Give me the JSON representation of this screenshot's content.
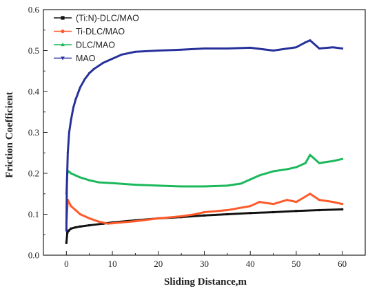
{
  "chart_data": {
    "type": "line",
    "title": "",
    "xlabel": "Sliding Distance,m",
    "ylabel": "Friction Coefficient",
    "xlim": [
      -5,
      65
    ],
    "ylim": [
      0.0,
      0.6
    ],
    "x_ticks": [
      0,
      10,
      20,
      30,
      40,
      50,
      60
    ],
    "y_ticks": [
      0.0,
      0.1,
      0.2,
      0.3,
      0.4,
      0.5,
      0.6
    ],
    "x_tick_labels": [
      "0",
      "10",
      "20",
      "30",
      "40",
      "50",
      "60"
    ],
    "y_tick_labels": [
      "0.0",
      "0.1",
      "0.2",
      "0.3",
      "0.4",
      "0.5",
      "0.6"
    ],
    "grid": false,
    "legend_position": "top-left",
    "series": [
      {
        "name": "(Ti:N)-DLC/MAO",
        "color": "#111111",
        "marker": "square",
        "x": [
          0,
          0.2,
          0.5,
          1,
          2,
          3,
          5,
          8,
          10,
          15,
          20,
          25,
          30,
          35,
          40,
          45,
          50,
          55,
          60
        ],
        "y": [
          0.03,
          0.055,
          0.06,
          0.065,
          0.068,
          0.07,
          0.073,
          0.077,
          0.08,
          0.085,
          0.09,
          0.093,
          0.097,
          0.1,
          0.103,
          0.105,
          0.108,
          0.11,
          0.112
        ]
      },
      {
        "name": "Ti-DLC/MAO",
        "color": "#ff5a2a",
        "marker": "circle",
        "x": [
          0,
          0.3,
          1,
          2,
          3,
          5,
          7,
          9,
          10,
          12,
          15,
          20,
          25,
          28,
          30,
          35,
          40,
          42,
          45,
          48,
          50,
          53,
          55,
          58,
          60
        ],
        "y": [
          0.08,
          0.135,
          0.12,
          0.11,
          0.1,
          0.09,
          0.082,
          0.077,
          0.078,
          0.08,
          0.083,
          0.09,
          0.095,
          0.1,
          0.105,
          0.11,
          0.12,
          0.13,
          0.125,
          0.135,
          0.13,
          0.15,
          0.135,
          0.13,
          0.125
        ]
      },
      {
        "name": "DLC/MAO",
        "color": "#1ab85a",
        "marker": "triangle-up",
        "x": [
          0,
          0.2,
          0.5,
          1,
          2,
          3,
          5,
          7,
          10,
          15,
          20,
          25,
          30,
          35,
          38,
          40,
          42,
          45,
          48,
          50,
          52,
          53,
          55,
          58,
          60
        ],
        "y": [
          0.15,
          0.2,
          0.205,
          0.2,
          0.195,
          0.19,
          0.183,
          0.178,
          0.176,
          0.172,
          0.17,
          0.168,
          0.168,
          0.17,
          0.175,
          0.185,
          0.195,
          0.205,
          0.21,
          0.215,
          0.225,
          0.245,
          0.225,
          0.23,
          0.235
        ]
      },
      {
        "name": "MAO",
        "color": "#27319a",
        "marker": "triangle-down",
        "x": [
          0,
          0.1,
          0.3,
          0.6,
          1,
          1.5,
          2,
          3,
          4,
          5,
          6,
          8,
          10,
          12,
          15,
          20,
          25,
          30,
          35,
          40,
          45,
          50,
          52,
          53,
          55,
          58,
          60
        ],
        "y": [
          0.06,
          0.17,
          0.25,
          0.3,
          0.33,
          0.36,
          0.38,
          0.41,
          0.43,
          0.445,
          0.455,
          0.47,
          0.48,
          0.49,
          0.497,
          0.5,
          0.502,
          0.505,
          0.505,
          0.507,
          0.5,
          0.508,
          0.52,
          0.525,
          0.505,
          0.508,
          0.505
        ]
      }
    ]
  }
}
